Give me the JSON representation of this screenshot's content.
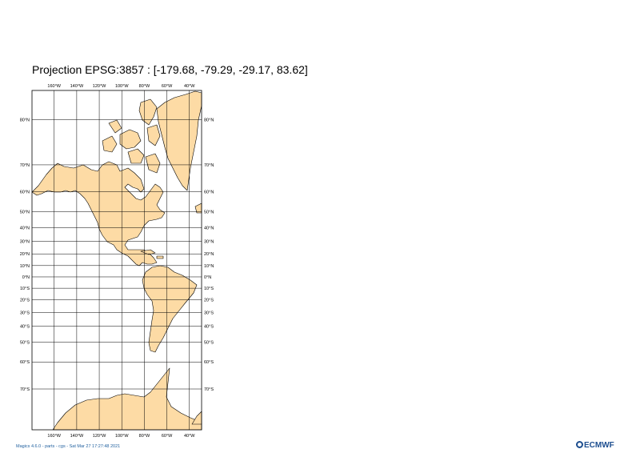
{
  "title": "Projection EPSG:3857 : [-179.68, -79.29, -29.17, 83.62]",
  "map": {
    "projection": "EPSG:3857",
    "extent": {
      "west": -179.68,
      "south": -79.29,
      "east": -29.17,
      "north": 83.62
    },
    "longitude_labels": [
      {
        "lon": -160,
        "label": "160°W"
      },
      {
        "lon": -140,
        "label": "140°W"
      },
      {
        "lon": -120,
        "label": "120°W"
      },
      {
        "lon": -100,
        "label": "100°W"
      },
      {
        "lon": -80,
        "label": "80°W"
      },
      {
        "lon": -60,
        "label": "60°W"
      },
      {
        "lon": -40,
        "label": "40°W"
      }
    ],
    "latitude_labels": [
      {
        "lat": 80,
        "label": "80°N"
      },
      {
        "lat": 70,
        "label": "70°N"
      },
      {
        "lat": 60,
        "label": "60°N"
      },
      {
        "lat": 50,
        "label": "50°N"
      },
      {
        "lat": 40,
        "label": "40°N"
      },
      {
        "lat": 30,
        "label": "30°N"
      },
      {
        "lat": 20,
        "label": "20°N"
      },
      {
        "lat": 10,
        "label": "10°N"
      },
      {
        "lat": 0,
        "label": "0°N"
      },
      {
        "lat": -10,
        "label": "10°S"
      },
      {
        "lat": -20,
        "label": "20°S"
      },
      {
        "lat": -30,
        "label": "30°S"
      },
      {
        "lat": -40,
        "label": "40°S"
      },
      {
        "lat": -50,
        "label": "50°S"
      },
      {
        "lat": -60,
        "label": "60°S"
      },
      {
        "lat": -70,
        "label": "70°S"
      }
    ],
    "land_color": "#fddba5",
    "coast_color": "#000000",
    "grid_color": "#000000"
  },
  "footer": {
    "credit": "Magics 4.6.0 - parts - cgs - Sat Mar 27 17:27:48 2021"
  },
  "logo": {
    "text": "ECMWF"
  }
}
